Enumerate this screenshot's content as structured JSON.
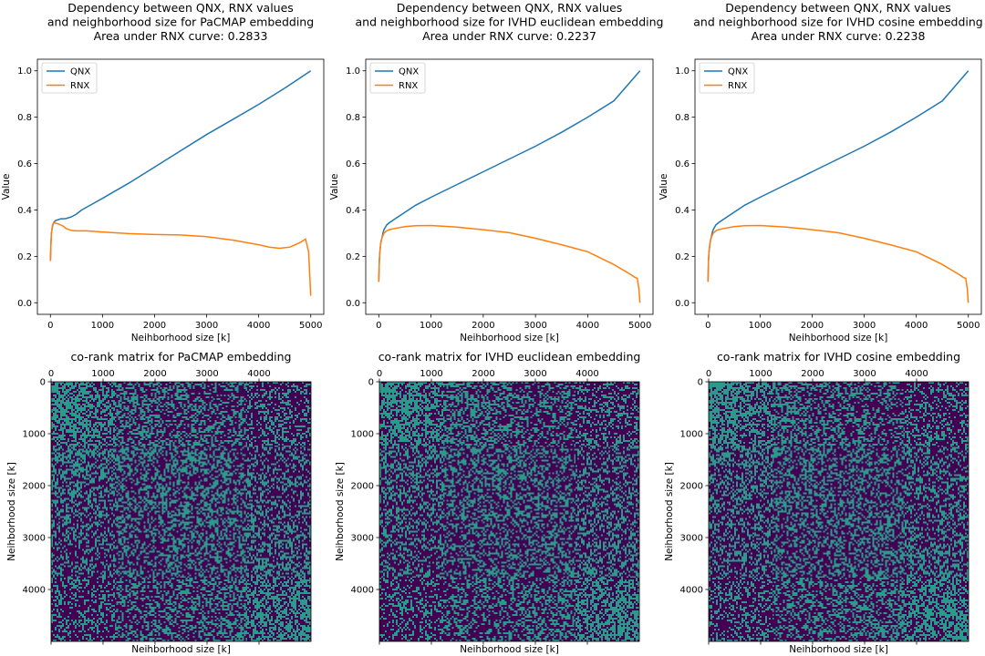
{
  "colors": {
    "qnx": "#1f77b4",
    "rnx": "#ff7f0e",
    "heat_low": "#440154",
    "heat_high": "#35b779"
  },
  "chart_data": [
    {
      "type": "line",
      "title_lines": [
        "Dependency between QNX, RNX values",
        "and neighborhood size for PaCMAP embedding",
        "Area under RNX curve: 0.2833"
      ],
      "xlabel": "Neihborhood size [k]",
      "ylabel": "Value",
      "xlim": [
        -250,
        5250
      ],
      "ylim": [
        -0.05,
        1.05
      ],
      "xticks": [
        "0",
        "1000",
        "2000",
        "3000",
        "4000",
        "5000"
      ],
      "yticks": [
        "0.0",
        "0.2",
        "0.4",
        "0.6",
        "0.8",
        "1.0"
      ],
      "legend_position": "upper-left",
      "series": [
        {
          "name": "QNX",
          "x": [
            0,
            10,
            20,
            40,
            60,
            80,
            100,
            150,
            200,
            250,
            300,
            400,
            500,
            600,
            800,
            1000,
            1500,
            2000,
            2500,
            3000,
            3500,
            4000,
            4500,
            5000
          ],
          "y": [
            0.18,
            0.25,
            0.3,
            0.33,
            0.345,
            0.35,
            0.355,
            0.358,
            0.362,
            0.362,
            0.363,
            0.37,
            0.382,
            0.4,
            0.425,
            0.45,
            0.515,
            0.585,
            0.655,
            0.725,
            0.79,
            0.855,
            0.925,
            1.0
          ]
        },
        {
          "name": "RNX",
          "x": [
            0,
            10,
            20,
            40,
            60,
            80,
            100,
            150,
            200,
            250,
            300,
            400,
            500,
            700,
            1000,
            1500,
            2000,
            2500,
            3000,
            3500,
            4000,
            4200,
            4400,
            4600,
            4800,
            4900,
            4960,
            4980,
            5000
          ],
          "y": [
            0.18,
            0.25,
            0.3,
            0.335,
            0.345,
            0.345,
            0.343,
            0.34,
            0.335,
            0.33,
            0.32,
            0.312,
            0.31,
            0.31,
            0.305,
            0.298,
            0.294,
            0.292,
            0.285,
            0.27,
            0.25,
            0.24,
            0.235,
            0.24,
            0.26,
            0.275,
            0.22,
            0.12,
            0.03
          ]
        }
      ]
    },
    {
      "type": "line",
      "title_lines": [
        "Dependency between QNX, RNX values",
        "and neighborhood size for IVHD euclidean embedding",
        "Area under RNX curve: 0.2237"
      ],
      "xlabel": "Neihborhood size [k]",
      "ylabel": "Value",
      "xlim": [
        -250,
        5250
      ],
      "ylim": [
        -0.05,
        1.05
      ],
      "xticks": [
        "0",
        "1000",
        "2000",
        "3000",
        "4000",
        "5000"
      ],
      "yticks": [
        "0.0",
        "0.2",
        "0.4",
        "0.6",
        "0.8",
        "1.0"
      ],
      "legend_position": "upper-left",
      "series": [
        {
          "name": "QNX",
          "x": [
            0,
            10,
            20,
            40,
            60,
            80,
            100,
            150,
            200,
            300,
            500,
            700,
            1000,
            1500,
            2000,
            2500,
            3000,
            3500,
            4000,
            4500,
            5000
          ],
          "y": [
            0.09,
            0.18,
            0.22,
            0.26,
            0.28,
            0.3,
            0.315,
            0.335,
            0.345,
            0.36,
            0.39,
            0.42,
            0.455,
            0.51,
            0.565,
            0.62,
            0.675,
            0.735,
            0.8,
            0.87,
            1.0
          ]
        },
        {
          "name": "RNX",
          "x": [
            0,
            10,
            20,
            40,
            60,
            80,
            100,
            150,
            200,
            300,
            500,
            700,
            1000,
            1500,
            2000,
            2500,
            3000,
            3500,
            4000,
            4500,
            4800,
            4900,
            4950,
            4980,
            5000
          ],
          "y": [
            0.09,
            0.18,
            0.22,
            0.26,
            0.28,
            0.29,
            0.3,
            0.31,
            0.315,
            0.32,
            0.328,
            0.332,
            0.333,
            0.326,
            0.315,
            0.302,
            0.278,
            0.25,
            0.22,
            0.165,
            0.125,
            0.11,
            0.105,
            0.06,
            0.0
          ]
        }
      ]
    },
    {
      "type": "line",
      "title_lines": [
        "Dependency between QNX, RNX values",
        "and neighborhood size for IVHD cosine embedding",
        "Area under RNX curve: 0.2238"
      ],
      "xlabel": "Neihborhood size [k]",
      "ylabel": "Value",
      "xlim": [
        -250,
        5250
      ],
      "ylim": [
        -0.05,
        1.05
      ],
      "xticks": [
        "0",
        "1000",
        "2000",
        "3000",
        "4000",
        "5000"
      ],
      "yticks": [
        "0.0",
        "0.2",
        "0.4",
        "0.6",
        "0.8",
        "1.0"
      ],
      "legend_position": "upper-left",
      "series": [
        {
          "name": "QNX",
          "x": [
            0,
            10,
            20,
            40,
            60,
            80,
            100,
            150,
            200,
            300,
            500,
            700,
            1000,
            1500,
            2000,
            2500,
            3000,
            3500,
            4000,
            4500,
            5000
          ],
          "y": [
            0.09,
            0.18,
            0.22,
            0.26,
            0.28,
            0.3,
            0.315,
            0.335,
            0.345,
            0.36,
            0.39,
            0.42,
            0.455,
            0.51,
            0.565,
            0.62,
            0.675,
            0.735,
            0.8,
            0.87,
            1.0
          ]
        },
        {
          "name": "RNX",
          "x": [
            0,
            10,
            20,
            40,
            60,
            80,
            100,
            150,
            200,
            300,
            500,
            700,
            1000,
            1500,
            2000,
            2500,
            3000,
            3500,
            4000,
            4500,
            4800,
            4900,
            4950,
            4980,
            5000
          ],
          "y": [
            0.09,
            0.18,
            0.22,
            0.26,
            0.28,
            0.29,
            0.3,
            0.31,
            0.315,
            0.32,
            0.328,
            0.332,
            0.333,
            0.326,
            0.315,
            0.302,
            0.278,
            0.25,
            0.22,
            0.165,
            0.125,
            0.11,
            0.105,
            0.06,
            0.0
          ]
        }
      ]
    },
    {
      "type": "heatmap",
      "title": "co-rank matrix for PaCMAP embedding",
      "xlabel": "Neihborhood size [k]",
      "ylabel": "Neihborhood size [k]",
      "extent": [
        0,
        5000
      ],
      "xticks": [
        "0",
        "1000",
        "2000",
        "3000",
        "4000"
      ],
      "yticks": [
        "0",
        "1000",
        "2000",
        "3000",
        "4000"
      ],
      "bright_corners": [
        "top-left",
        "bottom-right"
      ]
    },
    {
      "type": "heatmap",
      "title": "co-rank matrix for IVHD euclidean embedding",
      "xlabel": "Neihborhood size [k]",
      "ylabel": "Neihborhood size [k]",
      "extent": [
        0,
        5000
      ],
      "xticks": [
        "0",
        "1000",
        "2000",
        "3000",
        "4000"
      ],
      "yticks": [
        "0",
        "1000",
        "2000",
        "3000",
        "4000"
      ],
      "bright_corners": [
        "top-left",
        "bottom-right"
      ]
    },
    {
      "type": "heatmap",
      "title": "co-rank matrix for IVHD cosine embedding",
      "xlabel": "Neihborhood size [k]",
      "ylabel": "Neihborhood size [k]",
      "extent": [
        0,
        5000
      ],
      "xticks": [
        "0",
        "1000",
        "2000",
        "3000",
        "4000"
      ],
      "yticks": [
        "0",
        "1000",
        "2000",
        "3000",
        "4000"
      ],
      "bright_corners": [
        "top-left",
        "bottom-right"
      ]
    }
  ]
}
